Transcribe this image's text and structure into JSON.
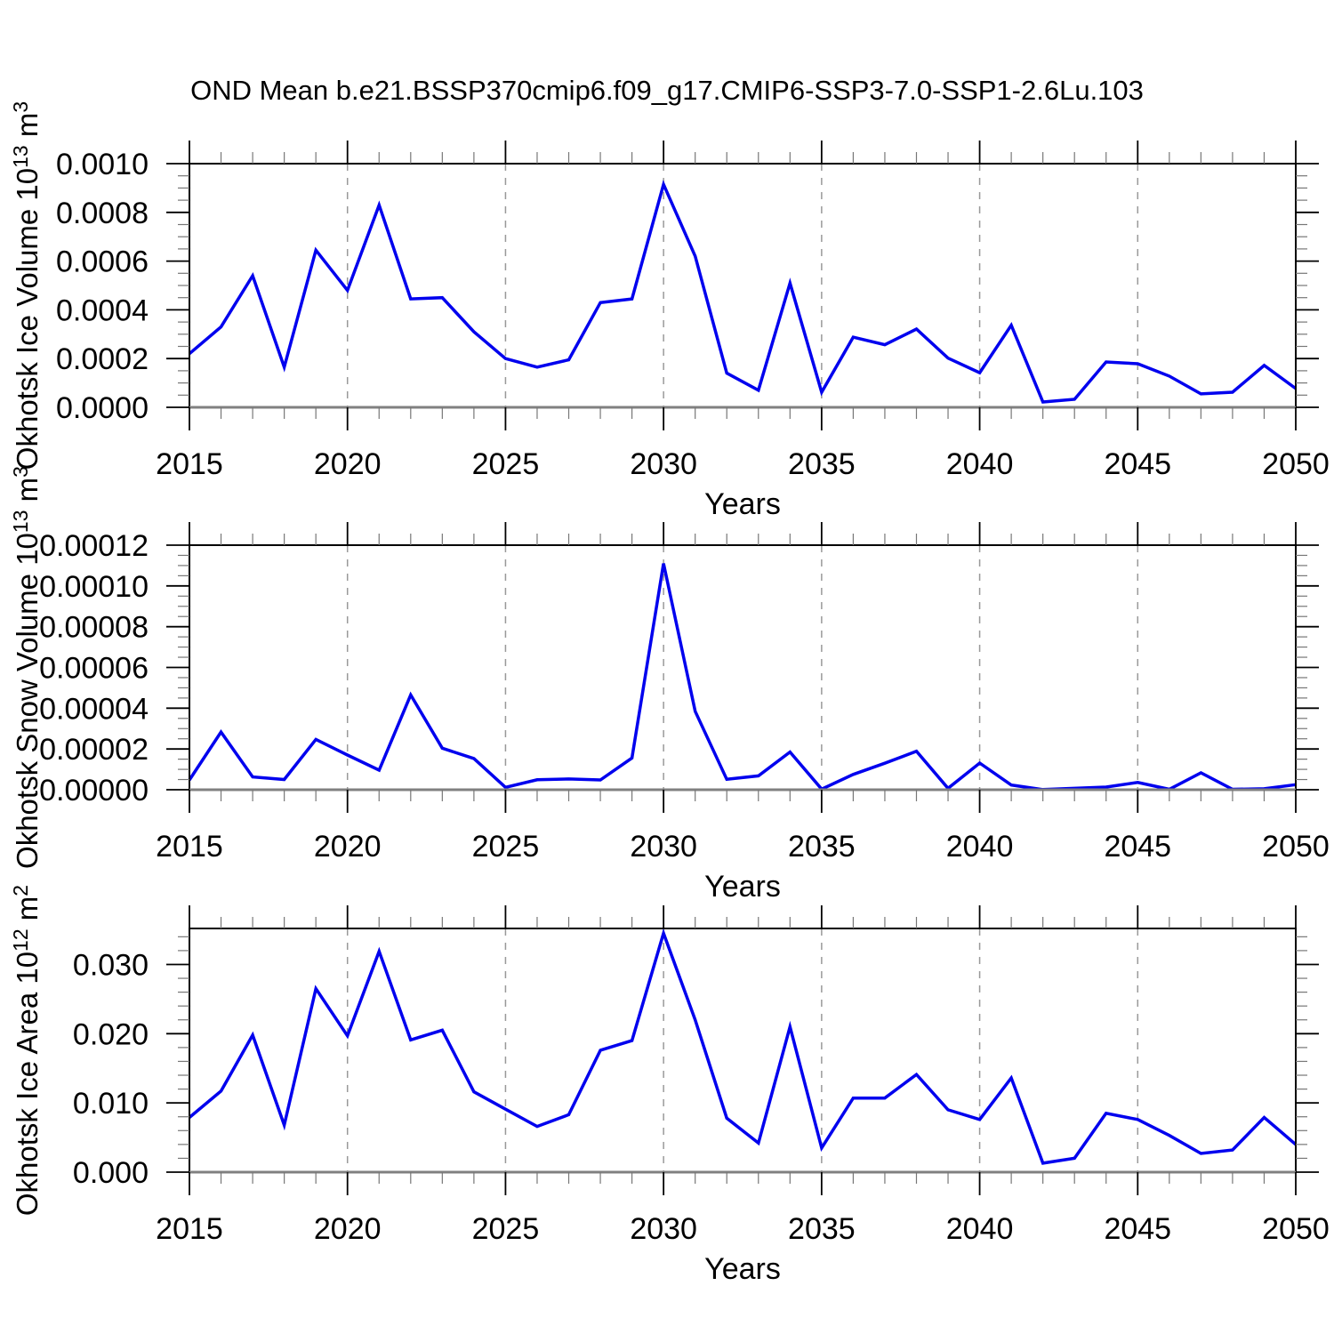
{
  "title": "OND Mean b.e21.BSSP370cmip6.f09_g17.CMIP6-SSP3-7.0-SSP1-2.6Lu.103",
  "colors": {
    "line": "#0000ee",
    "grid": "#999999",
    "minor_tick": "#777777",
    "major_tick": "#000000",
    "frame": "#000000",
    "zero_axis": "#808080"
  },
  "chart_data": [
    {
      "type": "line",
      "name": "okhotsk-ice-volume",
      "xlabel": "Years",
      "ylabel_parts": [
        {
          "t": "Okhotsk Ice Volume 10"
        },
        {
          "t": "13",
          "sup": true
        },
        {
          "t": " m"
        },
        {
          "t": "3",
          "sup": true
        }
      ],
      "xlim": [
        2015,
        2050
      ],
      "ylim": [
        0,
        0.001
      ],
      "xticks": {
        "values": [
          2015,
          2020,
          2025,
          2030,
          2035,
          2040,
          2045,
          2050
        ],
        "labels": [
          "2015",
          "2020",
          "2025",
          "2030",
          "2035",
          "2040",
          "2045",
          "2050"
        ]
      },
      "xminor_step": 1,
      "yticks": {
        "values": [
          0.0,
          0.0002,
          0.0004,
          0.0006,
          0.0008,
          0.001
        ],
        "labels": [
          "0.0000",
          "0.0002",
          "0.0004",
          "0.0006",
          "0.0008",
          "0.0010"
        ]
      },
      "yminor_step": 5e-05,
      "grid_years": [
        2020,
        2025,
        2030,
        2035,
        2040,
        2045
      ],
      "x": [
        2015,
        2016,
        2017,
        2018,
        2019,
        2020,
        2021,
        2022,
        2023,
        2024,
        2025,
        2026,
        2027,
        2028,
        2029,
        2030,
        2031,
        2032,
        2033,
        2034,
        2035,
        2036,
        2037,
        2038,
        2039,
        2040,
        2041,
        2042,
        2043,
        2044,
        2045,
        2046,
        2047,
        2048,
        2049,
        2050
      ],
      "values": [
        0.00022,
        0.00033,
        0.00054,
        0.000165,
        0.000645,
        0.00048,
        0.00083,
        0.000445,
        0.00045,
        0.00031,
        0.0002,
        0.000165,
        0.000195,
        0.00043,
        0.000445,
        0.000915,
        0.00062,
        0.00014,
        7e-05,
        0.00051,
        6.2e-05,
        0.000288,
        0.000257,
        0.000321,
        0.000202,
        0.000142,
        0.000337,
        2.2e-05,
        3.3e-05,
        0.000186,
        0.000179,
        0.000128,
        5.5e-05,
        6.2e-05,
        0.000172,
        7.7e-05
      ]
    },
    {
      "type": "line",
      "name": "okhotsk-snow-volume",
      "xlabel": "Years",
      "ylabel_parts": [
        {
          "t": "Okhotsk Snow Volume 10"
        },
        {
          "t": "13",
          "sup": true
        },
        {
          "t": " m"
        },
        {
          "t": "3",
          "sup": true
        }
      ],
      "xlim": [
        2015,
        2050
      ],
      "ylim": [
        0,
        0.00012
      ],
      "xticks": {
        "values": [
          2015,
          2020,
          2025,
          2030,
          2035,
          2040,
          2045,
          2050
        ],
        "labels": [
          "2015",
          "2020",
          "2025",
          "2030",
          "2035",
          "2040",
          "2045",
          "2050"
        ]
      },
      "xminor_step": 1,
      "yticks": {
        "values": [
          0.0,
          2e-05,
          4e-05,
          6e-05,
          8e-05,
          0.0001,
          0.00012
        ],
        "labels": [
          "0.00000",
          "0.00002",
          "0.00004",
          "0.00006",
          "0.00008",
          "0.00010",
          "0.00012"
        ]
      },
      "yminor_step": 5e-06,
      "grid_years": [
        2020,
        2025,
        2030,
        2035,
        2040,
        2045
      ],
      "x": [
        2015,
        2016,
        2017,
        2018,
        2019,
        2020,
        2021,
        2022,
        2023,
        2024,
        2025,
        2026,
        2027,
        2028,
        2029,
        2030,
        2031,
        2032,
        2033,
        2034,
        2035,
        2036,
        2037,
        2038,
        2039,
        2040,
        2041,
        2042,
        2043,
        2044,
        2045,
        2046,
        2047,
        2048,
        2049,
        2050
      ],
      "values": [
        4.8e-06,
        2.83e-05,
        6.3e-06,
        5e-06,
        2.47e-05,
        1.7e-05,
        9.6e-06,
        4.65e-05,
        2.04e-05,
        1.53e-05,
        1.2e-06,
        4.9e-06,
        5.3e-06,
        4.8e-06,
        1.56e-05,
        0.000111,
        3.85e-05,
        5.1e-06,
        6.8e-06,
        1.85e-05,
        3e-07,
        7.5e-06,
        1.3e-05,
        1.89e-05,
        7e-07,
        1.31e-05,
        2.3e-06,
        1e-07,
        7e-07,
        1.3e-06,
        3.6e-06,
        2e-07,
        8.3e-06,
        2e-07,
        5e-07,
        2.5e-06
      ]
    },
    {
      "type": "line",
      "name": "okhotsk-ice-area",
      "xlabel": "Years",
      "ylabel_parts": [
        {
          "t": "Okhotsk Ice Area 10"
        },
        {
          "t": "12",
          "sup": true
        },
        {
          "t": " m"
        },
        {
          "t": "2",
          "sup": true
        }
      ],
      "xlim": [
        2015,
        2050
      ],
      "ylim": [
        0,
        0.0352
      ],
      "xticks": {
        "values": [
          2015,
          2020,
          2025,
          2030,
          2035,
          2040,
          2045,
          2050
        ],
        "labels": [
          "2015",
          "2020",
          "2025",
          "2030",
          "2035",
          "2040",
          "2045",
          "2050"
        ]
      },
      "xminor_step": 1,
      "yticks": {
        "values": [
          0.0,
          0.01,
          0.02,
          0.03
        ],
        "labels": [
          "0.000",
          "0.010",
          "0.020",
          "0.030"
        ]
      },
      "yminor_step": 0.002,
      "grid_years": [
        2020,
        2025,
        2030,
        2035,
        2040,
        2045
      ],
      "x": [
        2015,
        2016,
        2017,
        2018,
        2019,
        2020,
        2021,
        2022,
        2023,
        2024,
        2025,
        2026,
        2027,
        2028,
        2029,
        2030,
        2031,
        2032,
        2033,
        2034,
        2035,
        2036,
        2037,
        2038,
        2039,
        2040,
        2041,
        2042,
        2043,
        2044,
        2045,
        2046,
        2047,
        2048,
        2049,
        2050
      ],
      "values": [
        0.0079,
        0.0117,
        0.0198,
        0.0068,
        0.0265,
        0.0197,
        0.0319,
        0.0191,
        0.0205,
        0.0116,
        0.0091,
        0.0066,
        0.0083,
        0.0176,
        0.019,
        0.0345,
        0.022,
        0.0078,
        0.0042,
        0.021,
        0.0035,
        0.0107,
        0.0107,
        0.0141,
        0.009,
        0.0076,
        0.0136,
        0.0013,
        0.002,
        0.0085,
        0.0076,
        0.0053,
        0.0027,
        0.0032,
        0.0079,
        0.004
      ]
    }
  ]
}
